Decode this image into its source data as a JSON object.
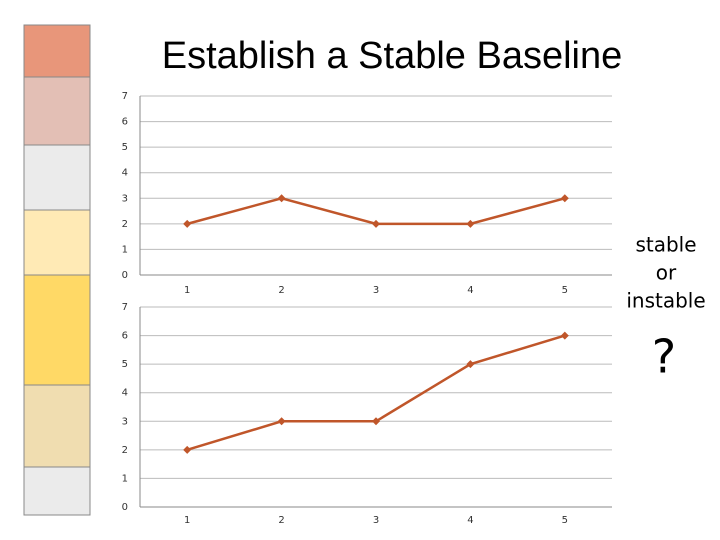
{
  "title": "Establish a Stable Baseline",
  "side_note": [
    "stable",
    "or",
    "instable"
  ],
  "question": "?",
  "chart_data": [
    {
      "type": "line",
      "categories": [
        "1",
        "2",
        "3",
        "4",
        "5"
      ],
      "values": [
        2,
        3,
        2,
        2,
        3
      ],
      "color": "#c0562a",
      "ylim": [
        0,
        7
      ],
      "yticks": [
        0,
        1,
        2,
        3,
        4,
        5,
        6,
        7
      ],
      "grid": true
    },
    {
      "type": "line",
      "categories": [
        "1",
        "2",
        "3",
        "4",
        "5"
      ],
      "values": [
        2,
        3,
        3,
        5,
        6
      ],
      "color": "#c0562a",
      "ylim": [
        0,
        7
      ],
      "yticks": [
        0,
        1,
        2,
        3,
        4,
        5,
        6,
        7
      ],
      "grid": true
    }
  ]
}
